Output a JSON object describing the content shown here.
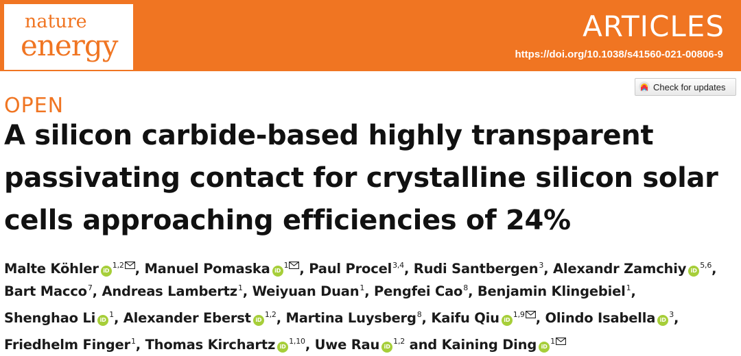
{
  "journal": {
    "name_line1": "nature",
    "name_line2": "energy"
  },
  "banner": {
    "section": "ARTICLES",
    "doi": "https://doi.org/10.1038/s41560-021-00806-9",
    "color": "#f07522"
  },
  "check_updates": {
    "label": "Check for updates"
  },
  "access_label": "OPEN",
  "title_lines": [
    "A silicon carbide-based highly transparent",
    "passivating contact for crystalline silicon solar",
    "cells approaching efficiencies of 24%"
  ],
  "orcid_icon_text": "iD",
  "authors": [
    {
      "name": "Malte Köhler",
      "orcid": true,
      "aff": "1,2",
      "email": true,
      "sep": ", "
    },
    {
      "name": "Manuel Pomaska",
      "orcid": true,
      "aff": "1",
      "email": true,
      "sep": ", "
    },
    {
      "name": "Paul Procel",
      "orcid": false,
      "aff": "3,4",
      "email": false,
      "sep": ", "
    },
    {
      "name": "Rudi Santbergen",
      "orcid": false,
      "aff": "3",
      "email": false,
      "sep": ", "
    },
    {
      "name": "Alexandr Zamchiy",
      "orcid": true,
      "aff": "5,6",
      "email": false,
      "sep": ", "
    },
    {
      "name": "Bart Macco",
      "orcid": false,
      "aff": "7",
      "email": false,
      "sep": ", "
    },
    {
      "name": "Andreas Lambertz",
      "orcid": false,
      "aff": "1",
      "email": false,
      "sep": ", "
    },
    {
      "name": "Weiyuan Duan",
      "orcid": false,
      "aff": "1",
      "email": false,
      "sep": ", "
    },
    {
      "name": "Pengfei Cao",
      "orcid": false,
      "aff": "8",
      "email": false,
      "sep": ", "
    },
    {
      "name": "Benjamin Klingebiel",
      "orcid": false,
      "aff": "1",
      "email": false,
      "sep": ", "
    },
    {
      "name": "Shenghao Li",
      "orcid": true,
      "aff": "1",
      "email": false,
      "sep": ", "
    },
    {
      "name": "Alexander Eberst",
      "orcid": true,
      "aff": "1,2",
      "email": false,
      "sep": ", "
    },
    {
      "name": "Martina Luysberg",
      "orcid": false,
      "aff": "8",
      "email": false,
      "sep": ", "
    },
    {
      "name": "Kaifu Qiu",
      "orcid": true,
      "aff": "1,9",
      "email": true,
      "sep": ", "
    },
    {
      "name": "Olindo Isabella",
      "orcid": true,
      "aff": "3",
      "email": false,
      "sep": ", "
    },
    {
      "name": "Friedhelm Finger",
      "orcid": false,
      "aff": "1",
      "email": false,
      "sep": ", "
    },
    {
      "name": "Thomas Kirchartz",
      "orcid": true,
      "aff": "1,10",
      "email": false,
      "sep": ", "
    },
    {
      "name": "Uwe Rau",
      "orcid": true,
      "aff": "1,2",
      "email": false,
      "sep": " and "
    },
    {
      "name": "Kaining Ding",
      "orcid": true,
      "aff": "1",
      "email": true,
      "sep": ""
    }
  ]
}
